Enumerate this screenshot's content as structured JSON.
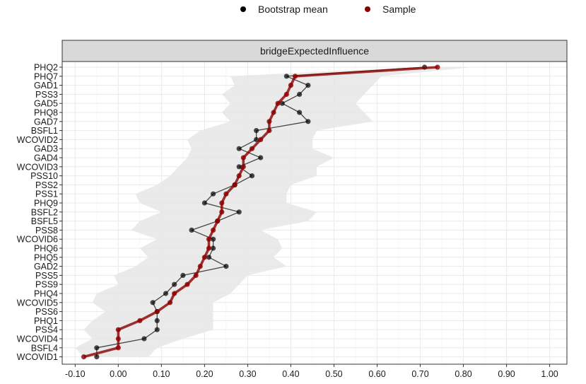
{
  "chart_data": {
    "type": "line",
    "panel_title": "bridgeExpectedInfluence",
    "legend": {
      "position": "top",
      "items": [
        {
          "label": "Bootstrap mean",
          "color": "#000000"
        },
        {
          "label": "Sample",
          "color": "#8b0000"
        }
      ]
    },
    "categories": [
      "PHQ2",
      "PHQ7",
      "GAD1",
      "PSS3",
      "GAD5",
      "PHQ8",
      "GAD7",
      "BSFL1",
      "WCOVID2",
      "GAD3",
      "GAD4",
      "WCOVID3",
      "PSS10",
      "PSS2",
      "PSS1",
      "PHQ9",
      "BSFL2",
      "BSFL5",
      "PSS8",
      "WCOVID6",
      "PHQ6",
      "PHQ5",
      "GAD2",
      "PSS5",
      "PSS9",
      "PHQ4",
      "WCOVID5",
      "PSS6",
      "PHQ1",
      "PSS4",
      "WCOVID4",
      "BSFL4",
      "WCOVID1"
    ],
    "series": [
      {
        "name": "Bootstrap mean",
        "color": "#000000",
        "values": [
          0.71,
          0.39,
          0.44,
          0.42,
          0.38,
          0.42,
          0.44,
          0.32,
          0.32,
          0.28,
          0.33,
          0.28,
          0.31,
          0.27,
          0.22,
          0.2,
          0.28,
          0.23,
          0.17,
          0.22,
          0.22,
          0.21,
          0.25,
          0.15,
          0.13,
          0.11,
          0.08,
          0.09,
          0.09,
          0.09,
          0.06,
          -0.05,
          -0.05
        ]
      },
      {
        "name": "Sample",
        "color": "#8b0000",
        "values": [
          0.74,
          0.41,
          0.4,
          0.39,
          0.37,
          0.36,
          0.35,
          0.35,
          0.33,
          0.31,
          0.29,
          0.29,
          0.28,
          0.27,
          0.25,
          0.24,
          0.24,
          0.23,
          0.22,
          0.21,
          0.21,
          0.2,
          0.19,
          0.18,
          0.16,
          0.13,
          0.12,
          0.09,
          0.05,
          0.0,
          0.0,
          0.0,
          -0.08
        ]
      }
    ],
    "ci_band": {
      "color": "#e6e6e6",
      "lower": [
        0.68,
        0.26,
        0.27,
        0.24,
        0.26,
        0.24,
        0.26,
        0.19,
        0.16,
        0.17,
        0.16,
        0.14,
        0.12,
        0.09,
        0.04,
        0.05,
        0.1,
        0.05,
        0.03,
        0.09,
        0.05,
        0.07,
        0.04,
        -0.01,
        0.0,
        -0.05,
        -0.06,
        -0.03,
        -0.06,
        -0.08,
        -0.06,
        -0.1,
        -0.08
      ],
      "upper": [
        0.82,
        0.61,
        0.59,
        0.57,
        0.55,
        0.57,
        0.59,
        0.46,
        0.45,
        0.45,
        0.5,
        0.46,
        0.46,
        0.4,
        0.39,
        0.39,
        0.46,
        0.44,
        0.33,
        0.37,
        0.38,
        0.36,
        0.39,
        0.3,
        0.28,
        0.26,
        0.22,
        0.22,
        0.22,
        0.22,
        0.15,
        0.09,
        0.07
      ]
    },
    "xlim": [
      -0.13,
      1.04
    ],
    "xticks": [
      "-0.10",
      "0.00",
      "0.10",
      "0.20",
      "0.30",
      "0.40",
      "0.50",
      "0.60",
      "0.70",
      "0.80",
      "0.90",
      "1.00"
    ],
    "xtick_values": [
      -0.1,
      0.0,
      0.1,
      0.2,
      0.3,
      0.4,
      0.5,
      0.6,
      0.7,
      0.8,
      0.9,
      1.0
    ],
    "grid": true
  }
}
